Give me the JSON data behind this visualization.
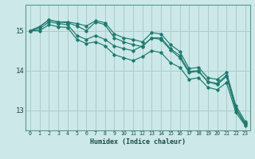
{
  "title": "",
  "xlabel": "Humidex (Indice chaleur)",
  "background_color": "#cce8e8",
  "grid_color": "#aacccc",
  "line_color": "#1e7a6e",
  "xlim": [
    -0.5,
    23.5
  ],
  "ylim": [
    12.5,
    15.65
  ],
  "yticks": [
    13,
    14,
    15
  ],
  "xtick_labels": [
    "0",
    "1",
    "2",
    "3",
    "4",
    "5",
    "6",
    "7",
    "8",
    "9",
    "10",
    "11",
    "12",
    "13",
    "14",
    "15",
    "16",
    "17",
    "18",
    "19",
    "20",
    "21",
    "22",
    "23"
  ],
  "series": [
    [
      15.0,
      15.1,
      15.27,
      15.22,
      15.22,
      15.18,
      15.12,
      15.25,
      15.2,
      14.92,
      14.82,
      14.78,
      14.72,
      14.95,
      14.92,
      14.65,
      14.48,
      14.05,
      14.08,
      13.82,
      13.78,
      13.95,
      13.12,
      12.72
    ],
    [
      15.0,
      15.1,
      15.27,
      15.22,
      15.2,
      15.12,
      15.0,
      15.22,
      15.15,
      14.82,
      14.72,
      14.65,
      14.6,
      14.82,
      14.82,
      14.55,
      14.38,
      13.98,
      14.0,
      13.72,
      13.68,
      13.88,
      13.05,
      12.68
    ],
    [
      15.0,
      15.05,
      15.22,
      15.18,
      15.15,
      14.88,
      14.78,
      14.88,
      14.78,
      14.62,
      14.55,
      14.5,
      14.62,
      14.82,
      14.78,
      14.52,
      14.32,
      13.95,
      13.98,
      13.72,
      13.65,
      13.85,
      13.02,
      12.65
    ],
    [
      15.0,
      15.0,
      15.15,
      15.1,
      15.08,
      14.78,
      14.68,
      14.72,
      14.62,
      14.4,
      14.32,
      14.25,
      14.35,
      14.5,
      14.45,
      14.2,
      14.08,
      13.78,
      13.82,
      13.58,
      13.52,
      13.7,
      12.95,
      12.62
    ]
  ]
}
